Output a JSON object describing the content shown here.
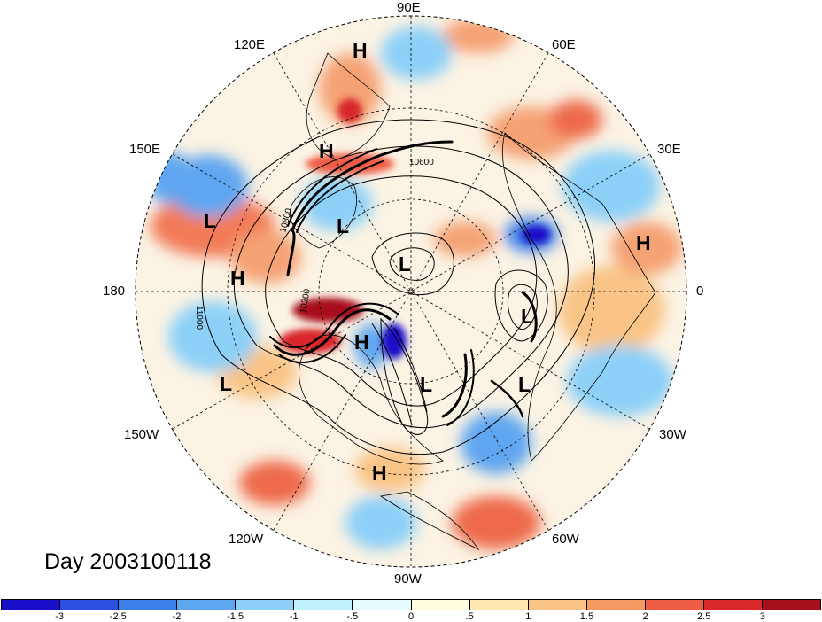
{
  "map": {
    "longitude_labels": {
      "lon_90e": "90E",
      "lon_60e": "60E",
      "lon_120e": "120E",
      "lon_30e": "30E",
      "lon_150e": "150E",
      "lon_180": "180",
      "lon_0": "0",
      "lon_150w": "150W",
      "lon_30w": "30W",
      "lon_120w": "120W",
      "lon_60w": "60W",
      "lon_90w": "90W"
    },
    "pressure_centers": [
      {
        "id": "h1",
        "label": "H"
      },
      {
        "id": "h2",
        "label": "H"
      },
      {
        "id": "h3",
        "label": "H"
      },
      {
        "id": "h4",
        "label": "H"
      },
      {
        "id": "h5",
        "label": "H"
      },
      {
        "id": "h6",
        "label": "H"
      },
      {
        "id": "l1",
        "label": "L"
      },
      {
        "id": "l2",
        "label": "L"
      },
      {
        "id": "l3",
        "label": "L"
      },
      {
        "id": "l4",
        "label": "L"
      },
      {
        "id": "l5",
        "label": "L"
      },
      {
        "id": "l6",
        "label": "L"
      },
      {
        "id": "l7",
        "label": "L"
      }
    ],
    "contour_labels": {
      "c10600": "10600",
      "c10800": "10800",
      "c10200": "10200",
      "c11000": "11000"
    },
    "day_label": "Day 2003100118"
  },
  "colorbar": {
    "colors": [
      "#1a0fc8",
      "#2b4fe0",
      "#3d7fe8",
      "#5fa6f0",
      "#8cd0f8",
      "#c0f0fc",
      "#e6fbfd",
      "#fffce0",
      "#fde8b0",
      "#f9c486",
      "#f59a62",
      "#ee5c44",
      "#d8282a",
      "#a8101c"
    ],
    "ticks": [
      "-3",
      "-2.5",
      "-2",
      "-1.5",
      "-1",
      "-.5",
      "0",
      ".5",
      "1",
      "1.5",
      "2",
      "2.5",
      "3"
    ]
  }
}
